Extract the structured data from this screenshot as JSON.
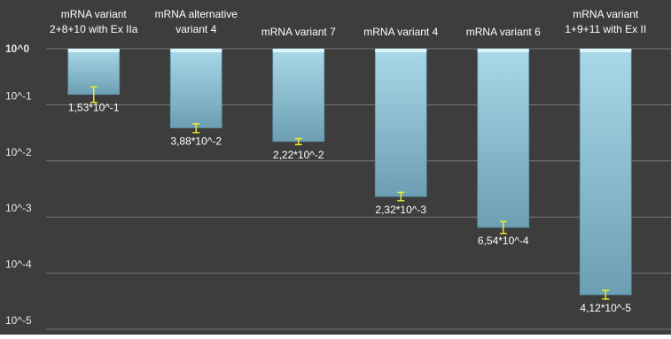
{
  "chart_data": {
    "type": "bar",
    "scale": "log10",
    "orientation": "bars hang down from 10^0",
    "ylim": [
      1e-05,
      1
    ],
    "yticks": [
      {
        "value": 1,
        "label": "10^0"
      },
      {
        "value": 0.1,
        "label": "10^-1"
      },
      {
        "value": 0.01,
        "label": "10^-2"
      },
      {
        "value": 0.001,
        "label": "10^-3"
      },
      {
        "value": 0.0001,
        "label": "10^-4"
      },
      {
        "value": 1e-05,
        "label": "10^-5"
      }
    ],
    "categories": [
      [
        "mRNA variant",
        "2+8+10 with Ex IIa"
      ],
      [
        "mRNA alternative",
        "variant 4"
      ],
      [
        "mRNA variant 7"
      ],
      [
        "mRNA variant 4"
      ],
      [
        "mRNA variant 6"
      ],
      [
        "mRNA variant",
        "1+9+11 with Ex II"
      ]
    ],
    "values": [
      0.153,
      0.0388,
      0.0222,
      0.00232,
      0.000654,
      4.12e-05
    ],
    "value_labels": [
      "1,53*10^-1",
      "3,88*10^-2",
      "2,22*10^-2",
      "2,32*10^-3",
      "6,54*10^-4",
      "4,12*10^-5"
    ],
    "error_bars": [
      [
        0.11,
        0.21
      ],
      [
        0.032,
        0.046
      ],
      [
        0.0195,
        0.025
      ],
      [
        0.00195,
        0.00275
      ],
      [
        0.00051,
        0.00083
      ],
      [
        3.45e-05,
        4.95e-05
      ]
    ],
    "grid": true,
    "legend": "none",
    "title": "",
    "xlabel": "",
    "ylabel": ""
  },
  "colors": {
    "background": "#3d3d3d",
    "gridline": "#787878",
    "bar_top": "#a9d9ea",
    "bar_bottom": "#6c9fb3",
    "bar_cap": "#ddf4fb",
    "error_bar": "#f2ee2c",
    "text": "#ffffff",
    "axis_text": "#e6e6e6"
  }
}
